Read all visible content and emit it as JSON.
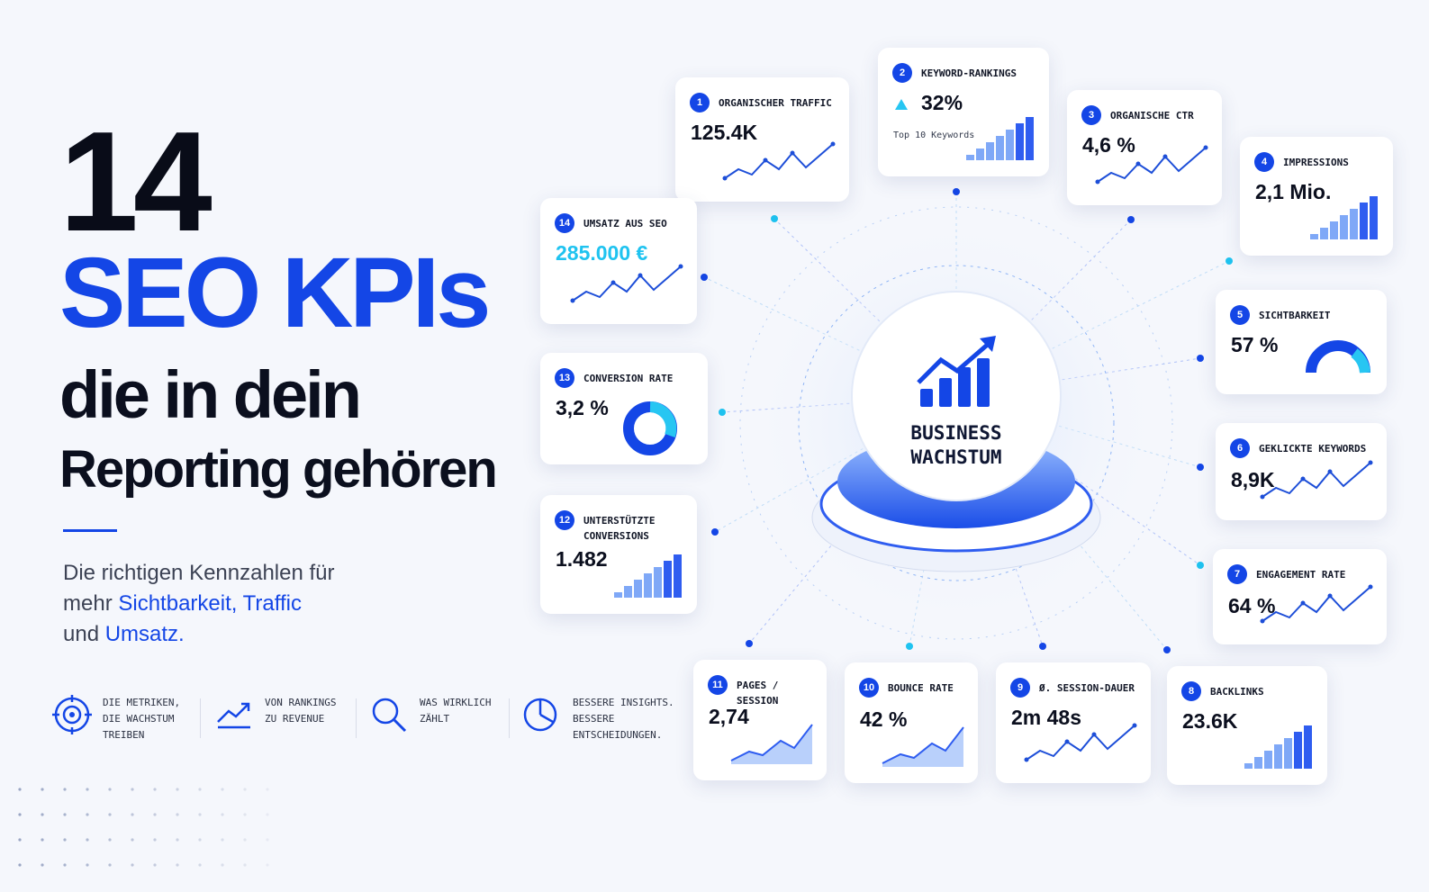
{
  "header": {
    "number": "14",
    "title": "SEO KPIs",
    "line1": "die in dein",
    "line2": "Reporting gehören"
  },
  "intro": {
    "line1": "Die richtigen Kennzahlen für",
    "line2_a": "mehr",
    "line2_b": "Sichtbarkeit, Traffic",
    "line3_a": "und",
    "line3_b": "Umsatz."
  },
  "features": [
    {
      "lines": [
        "DIE METRIKEN,",
        "DIE WACHSTUM",
        "TREIBEN"
      ]
    },
    {
      "lines": [
        "VON RANKINGS",
        "ZU REVENUE"
      ]
    },
    {
      "lines": [
        "WAS WIRKLICH",
        "ZÄHLT"
      ]
    },
    {
      "lines": [
        "BESSERE INSIGHTS.",
        "BESSERE",
        "ENTSCHEIDUNGEN."
      ]
    }
  ],
  "center": {
    "lines": [
      "BUSINESS",
      "WACHSTUM"
    ]
  },
  "kpis": [
    {
      "num": 1,
      "title": "ORGANISCHER TRAFFIC",
      "value": "125.4K"
    },
    {
      "num": 2,
      "title": "KEYWORD-RANKINGS",
      "value": "32%",
      "sub": "Top 10 Keywords"
    },
    {
      "num": 3,
      "title": "ORGANISCHE CTR",
      "value": "4,6 %"
    },
    {
      "num": 4,
      "title": "IMPRESSIONS",
      "value": "2,1 Mio."
    },
    {
      "num": 5,
      "title": "SICHTBARKEIT",
      "value": "57 %"
    },
    {
      "num": 6,
      "title": "GEKLICKTE KEYWORDS",
      "value": "8,9K"
    },
    {
      "num": 7,
      "title": "ENGAGEMENT RATE",
      "value": "64 %"
    },
    {
      "num": 8,
      "title": "BACKLINKS",
      "value": "23.6K"
    },
    {
      "num": 9,
      "title": "Ø. SESSION-DAUER",
      "value": "2m 48s"
    },
    {
      "num": 10,
      "title": "BOUNCE RATE",
      "value": "42 %"
    },
    {
      "num": 11,
      "title": "PAGES / SESSION",
      "value": "2,74"
    },
    {
      "num": 12,
      "title": "UNTERSTÜTZTE CONVERSIONS",
      "value": "1.482"
    },
    {
      "num": 13,
      "title": "CONVERSION RATE",
      "value": "3,2 %"
    },
    {
      "num": 14,
      "title": "UMSATZ AUS SEO",
      "value": "285.000 €"
    }
  ]
}
